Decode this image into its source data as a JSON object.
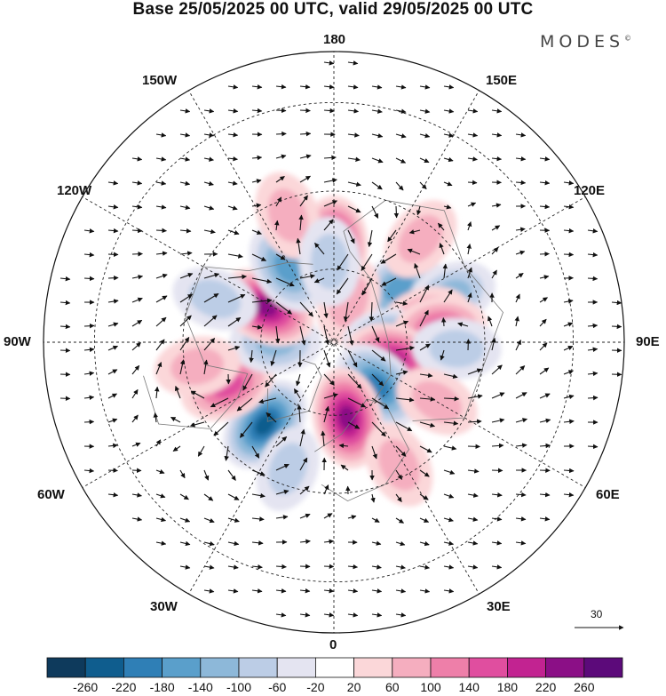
{
  "title": "Base 25/05/2025 00 UTC, valid 29/05/2025 00 UTC",
  "brand": {
    "name": "MODES",
    "mark": "©"
  },
  "longitude_labels": {
    "top": "180",
    "top_left": "150W",
    "top_right": "150E",
    "upper_left": "120W",
    "upper_right": "120E",
    "left": "90W",
    "right": "90E",
    "lower_left": "60W",
    "lower_right": "60E",
    "bottom_left": "30W",
    "bottom_right": "30E",
    "bottom": "0"
  },
  "reference_vector": {
    "value": "30"
  },
  "colorbar": {
    "ticks": [
      "-260",
      "-220",
      "-180",
      "-140",
      "-100",
      "-60",
      "-20",
      "20",
      "60",
      "100",
      "140",
      "180",
      "220",
      "260"
    ],
    "colors": [
      "#0e3a5c",
      "#0f5d8e",
      "#2f7fb6",
      "#5a9fcb",
      "#8db8d9",
      "#bccde6",
      "#e4e4f1",
      "#ffffff",
      "#fbd7d9",
      "#f5aebf",
      "#ee7fa9",
      "#e04e9f",
      "#c22391",
      "#8b0f86",
      "#5c0a7a"
    ]
  },
  "anomalies": [
    {
      "lon": 180,
      "colat": 26,
      "value": 220
    },
    {
      "lon": 130,
      "colat": 23,
      "value": -160
    },
    {
      "lon": 112,
      "colat": 34,
      "value": -110
    },
    {
      "lon": 160,
      "colat": 12,
      "value": 70
    },
    {
      "lon": 104,
      "colat": 26,
      "value": 120
    },
    {
      "lon": 90,
      "colat": 16,
      "value": -190
    },
    {
      "lon": 97,
      "colat": 29,
      "value": 150
    },
    {
      "lon": 75,
      "colat": 17,
      "value": 200
    },
    {
      "lon": 87,
      "colat": 33,
      "value": -90
    },
    {
      "lon": 45,
      "colat": 17,
      "value": -190
    },
    {
      "lon": 60,
      "colat": 32,
      "value": 60
    },
    {
      "lon": 10,
      "colat": 21,
      "value": 230
    },
    {
      "lon": -40,
      "colat": 29,
      "value": -220
    },
    {
      "lon": -68,
      "colat": 31,
      "value": 170
    },
    {
      "lon": -90,
      "colat": 16,
      "value": -120
    },
    {
      "lon": -117,
      "colat": 21,
      "value": 230
    },
    {
      "lon": -148,
      "colat": 24,
      "value": -170
    },
    {
      "lon": -160,
      "colat": 36,
      "value": 90
    },
    {
      "lon": -177,
      "colat": 22,
      "value": -90
    },
    {
      "lon": -110,
      "colat": 34,
      "value": -60
    },
    {
      "lon": 28,
      "colat": 37,
      "value": 80
    },
    {
      "lon": -80,
      "colat": 37,
      "value": 60
    },
    {
      "lon": -20,
      "colat": 36,
      "value": -60
    },
    {
      "lon": 140,
      "colat": 36,
      "value": 70
    }
  ],
  "circulations": [
    {
      "lon": 180,
      "colat": 26,
      "value": 1
    },
    {
      "lon": 130,
      "colat": 23,
      "value": -1
    },
    {
      "lon": 90,
      "colat": 16,
      "value": -1
    },
    {
      "lon": 75,
      "colat": 17,
      "value": 1
    },
    {
      "lon": 45,
      "colat": 17,
      "value": -1
    },
    {
      "lon": 10,
      "colat": 21,
      "value": 1
    },
    {
      "lon": -40,
      "colat": 29,
      "value": -1
    },
    {
      "lon": -68,
      "colat": 31,
      "value": 1
    },
    {
      "lon": -117,
      "colat": 21,
      "value": 1
    },
    {
      "lon": -148,
      "colat": 24,
      "value": -1
    },
    {
      "lon": 97,
      "colat": 29,
      "value": 1
    },
    {
      "lon": 87,
      "colat": 33,
      "value": -1
    }
  ]
}
